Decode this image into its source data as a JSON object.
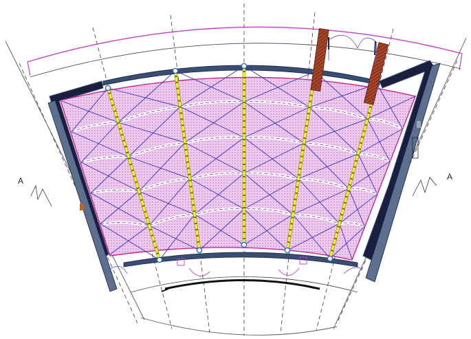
{
  "section_marks": {
    "left": "A",
    "right": "A"
  },
  "colors": {
    "wall": "#1b1f3f",
    "wall_outline": "#3a4d73",
    "slab_fill": "#eccbee",
    "slab_outline": "#c02a8c",
    "beam": "#f3ef35",
    "bracing": "#3b2fc4",
    "gridline": "#3a3a3a",
    "canopy": "#c83ac8",
    "stair": "#8c2f1d",
    "column_node": "#2a6fb8"
  },
  "structure": {
    "main_beams": 5,
    "bays": 4,
    "beam_divisions": 5
  }
}
